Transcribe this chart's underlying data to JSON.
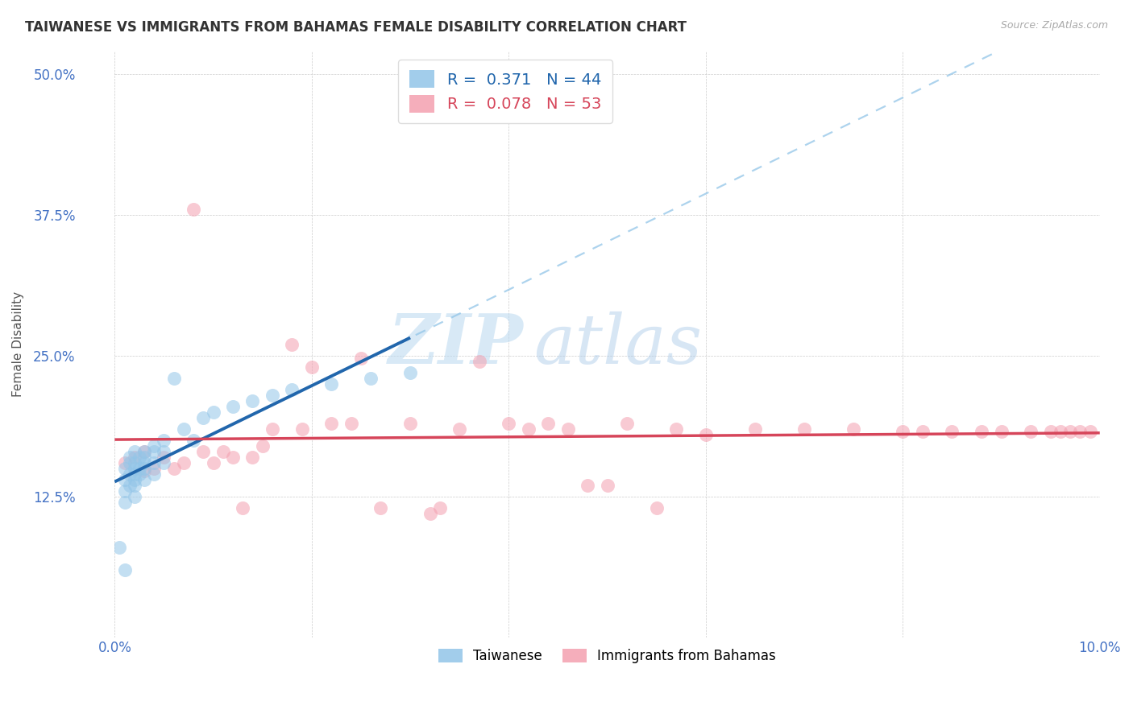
{
  "title": "TAIWANESE VS IMMIGRANTS FROM BAHAMAS FEMALE DISABILITY CORRELATION CHART",
  "source": "Source: ZipAtlas.com",
  "ylabel": "Female Disability",
  "xlim": [
    0.0,
    0.1
  ],
  "ylim": [
    0.0,
    0.52
  ],
  "xticks": [
    0.0,
    0.02,
    0.04,
    0.06,
    0.08,
    0.1
  ],
  "xticklabels": [
    "0.0%",
    "",
    "",
    "",
    "",
    "10.0%"
  ],
  "yticks": [
    0.0,
    0.125,
    0.25,
    0.375,
    0.5
  ],
  "yticklabels": [
    "",
    "12.5%",
    "25.0%",
    "37.5%",
    "50.0%"
  ],
  "blue_R": 0.371,
  "blue_N": 44,
  "pink_R": 0.078,
  "pink_N": 53,
  "blue_scatter_color": "#92c5e8",
  "pink_scatter_color": "#f4a0b0",
  "blue_line_color": "#2166ac",
  "pink_line_color": "#d6455a",
  "blue_dashed_color": "#92c5e8",
  "legend_label_blue": "Taiwanese",
  "legend_label_pink": "Immigrants from Bahamas",
  "watermark_zip": "ZIP",
  "watermark_atlas": "atlas",
  "blue_x": [
    0.0005,
    0.001,
    0.001,
    0.001,
    0.001,
    0.001,
    0.0015,
    0.0015,
    0.0015,
    0.0015,
    0.002,
    0.002,
    0.002,
    0.002,
    0.002,
    0.002,
    0.002,
    0.0025,
    0.0025,
    0.0025,
    0.003,
    0.003,
    0.003,
    0.003,
    0.003,
    0.004,
    0.004,
    0.004,
    0.004,
    0.005,
    0.005,
    0.005,
    0.006,
    0.007,
    0.008,
    0.009,
    0.01,
    0.012,
    0.014,
    0.016,
    0.018,
    0.022,
    0.026,
    0.03
  ],
  "blue_y": [
    0.08,
    0.15,
    0.14,
    0.13,
    0.12,
    0.06,
    0.16,
    0.155,
    0.145,
    0.135,
    0.165,
    0.155,
    0.15,
    0.145,
    0.14,
    0.135,
    0.125,
    0.16,
    0.15,
    0.145,
    0.165,
    0.16,
    0.155,
    0.15,
    0.14,
    0.17,
    0.165,
    0.155,
    0.145,
    0.175,
    0.165,
    0.155,
    0.23,
    0.185,
    0.175,
    0.195,
    0.2,
    0.205,
    0.21,
    0.215,
    0.22,
    0.225,
    0.23,
    0.235
  ],
  "pink_x": [
    0.001,
    0.002,
    0.003,
    0.003,
    0.004,
    0.005,
    0.006,
    0.007,
    0.008,
    0.009,
    0.01,
    0.011,
    0.012,
    0.013,
    0.014,
    0.015,
    0.016,
    0.018,
    0.019,
    0.02,
    0.022,
    0.024,
    0.025,
    0.027,
    0.03,
    0.032,
    0.033,
    0.035,
    0.037,
    0.04,
    0.042,
    0.044,
    0.046,
    0.048,
    0.05,
    0.052,
    0.055,
    0.057,
    0.06,
    0.065,
    0.07,
    0.075,
    0.08,
    0.082,
    0.085,
    0.088,
    0.09,
    0.093,
    0.095,
    0.096,
    0.097,
    0.098,
    0.099
  ],
  "pink_y": [
    0.155,
    0.16,
    0.148,
    0.165,
    0.15,
    0.16,
    0.15,
    0.155,
    0.38,
    0.165,
    0.155,
    0.165,
    0.16,
    0.115,
    0.16,
    0.17,
    0.185,
    0.26,
    0.185,
    0.24,
    0.19,
    0.19,
    0.248,
    0.115,
    0.19,
    0.11,
    0.115,
    0.185,
    0.245,
    0.19,
    0.185,
    0.19,
    0.185,
    0.135,
    0.135,
    0.19,
    0.115,
    0.185,
    0.18,
    0.185,
    0.185,
    0.185,
    0.183,
    0.183,
    0.183,
    0.183,
    0.183,
    0.183,
    0.183,
    0.183,
    0.183,
    0.183,
    0.183
  ]
}
